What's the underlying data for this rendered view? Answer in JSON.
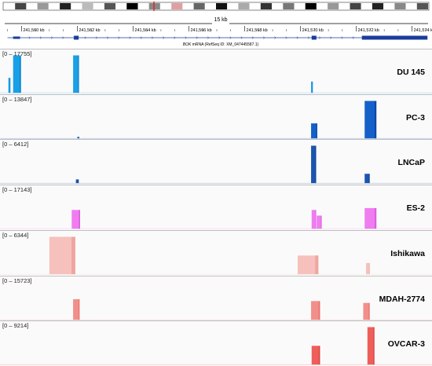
{
  "ruler": {
    "span_label": "15 kb",
    "ticks": [
      {
        "label": "241,560 kb",
        "bp": 241560000
      },
      {
        "label": "241,562 kb",
        "bp": 241562000
      },
      {
        "label": "241,564 kb",
        "bp": 241564000
      },
      {
        "label": "241,566 kb",
        "bp": 241566000
      },
      {
        "label": "241,568 kb",
        "bp": 241568000
      },
      {
        "label": "241,570 kb",
        "bp": 241570000
      },
      {
        "label": "241,572 kb",
        "bp": 241572000
      },
      {
        "label": "241,574 kb",
        "bp": 241574000
      }
    ],
    "view_start_bp": 241559400,
    "view_end_bp": 241574600
  },
  "gene": {
    "name": "BOK",
    "description": "mRNA (RefSeq ID: XM_047445587.1)",
    "start_bp": 241559500,
    "end_bp": 241574550,
    "exons": [
      {
        "start_bp": 241559700,
        "end_bp": 241559950,
        "thick": false
      },
      {
        "start_bp": 241561880,
        "end_bp": 241562050,
        "thick": true
      },
      {
        "start_bp": 241570400,
        "end_bp": 241570570,
        "thick": true
      },
      {
        "start_bp": 241572200,
        "end_bp": 241574550,
        "thick": true
      }
    ]
  },
  "tracks": [
    {
      "name": "DU 145",
      "range": "[0 – 17755]",
      "color": "#1aa0e6",
      "dark": "#0b78c8",
      "peaks": [
        {
          "start_bp": 241559530,
          "end_bp": 241559600,
          "level": 0.4
        },
        {
          "start_bp": 241559700,
          "end_bp": 241559980,
          "level": 1.0
        },
        {
          "start_bp": 241561850,
          "end_bp": 241562060,
          "level": 1.0
        },
        {
          "start_bp": 241570380,
          "end_bp": 241570440,
          "level": 0.3
        }
      ]
    },
    {
      "name": "PC-3",
      "range": "[0 – 13847]",
      "color": "#1560c8",
      "dark": "#0a3fa0",
      "peaks": [
        {
          "start_bp": 241562000,
          "end_bp": 241562070,
          "level": 0.04
        },
        {
          "start_bp": 241570380,
          "end_bp": 241570600,
          "level": 0.4
        },
        {
          "start_bp": 241572300,
          "end_bp": 241572720,
          "level": 1.0
        }
      ]
    },
    {
      "name": "LNCaP",
      "range": "[0 – 6412]",
      "color": "#1a56b0",
      "dark": "#0d3c86",
      "peaks": [
        {
          "start_bp": 241561950,
          "end_bp": 241562050,
          "level": 0.1
        },
        {
          "start_bp": 241570380,
          "end_bp": 241570560,
          "level": 1.0
        },
        {
          "start_bp": 241572300,
          "end_bp": 241572480,
          "level": 0.25
        }
      ]
    },
    {
      "name": "ES-2",
      "range": "[0 – 17143]",
      "color": "#ef7df0",
      "dark": "#d956da",
      "peaks": [
        {
          "start_bp": 241561800,
          "end_bp": 241562100,
          "level": 0.5
        },
        {
          "start_bp": 241570400,
          "end_bp": 241570560,
          "level": 0.5
        },
        {
          "start_bp": 241570580,
          "end_bp": 241570760,
          "level": 0.35
        },
        {
          "start_bp": 241572300,
          "end_bp": 241572720,
          "level": 0.55
        }
      ]
    },
    {
      "name": "Ishikawa",
      "range": "[0 – 6344]",
      "color": "#f6c1bd",
      "dark": "#ee9e98",
      "peaks": [
        {
          "start_bp": 241561000,
          "end_bp": 241561930,
          "level": 1.0
        },
        {
          "start_bp": 241569900,
          "end_bp": 241570640,
          "level": 0.5
        },
        {
          "start_bp": 241572350,
          "end_bp": 241572480,
          "level": 0.3
        }
      ]
    },
    {
      "name": "MDAH-2774",
      "range": "[0 – 15723]",
      "color": "#f28f8a",
      "dark": "#e56b66",
      "peaks": [
        {
          "start_bp": 241561850,
          "end_bp": 241562080,
          "level": 0.55
        },
        {
          "start_bp": 241570380,
          "end_bp": 241570700,
          "level": 0.5
        },
        {
          "start_bp": 241572250,
          "end_bp": 241572480,
          "level": 0.45
        }
      ]
    },
    {
      "name": "OVCAR-3",
      "range": "[0 – 9214]",
      "color": "#ee5e5a",
      "dark": "#d9403c",
      "peaks": [
        {
          "start_bp": 241570400,
          "end_bp": 241570700,
          "level": 0.5
        },
        {
          "start_bp": 241572400,
          "end_bp": 241572650,
          "level": 1.0
        }
      ]
    }
  ]
}
